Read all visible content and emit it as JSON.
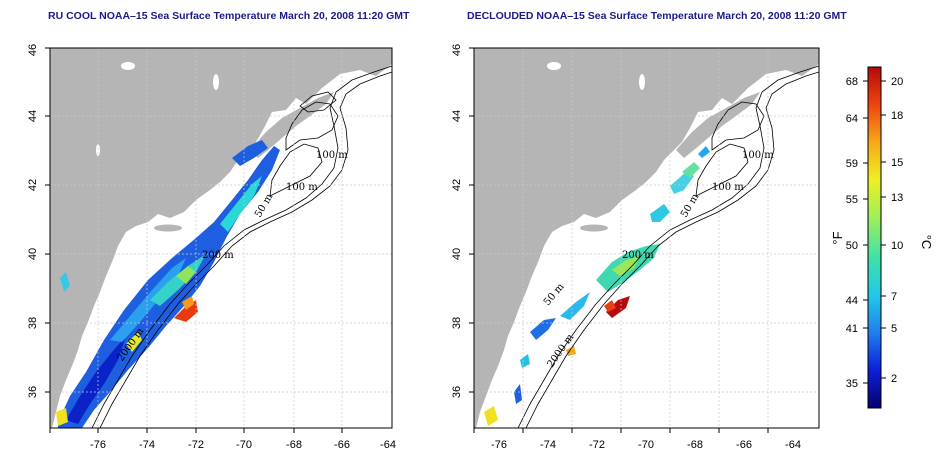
{
  "left_panel": {
    "title": "RU COOL NOAA–15 Sea Surface Temperature March 20, 2008 11:20 GMT",
    "lon_ticks": [
      "-76",
      "-74",
      "-72",
      "-70",
      "-68",
      "-66",
      "-64"
    ],
    "lat_ticks": [
      "36",
      "38",
      "40",
      "42",
      "44",
      "46"
    ],
    "isobath_labels": [
      "100 m",
      "100 m",
      "50 m",
      "200 m",
      "2000 m"
    ]
  },
  "right_panel": {
    "title": "DECLOUDED NOAA–15 Sea Surface Temperature March 20, 2008 11:20 GMT",
    "lon_ticks": [
      "-76",
      "-74",
      "-72",
      "-70",
      "-68",
      "-66",
      "-64"
    ],
    "lat_ticks": [
      "36",
      "38",
      "40",
      "42",
      "44",
      "46"
    ],
    "isobath_labels": [
      "100 m",
      "100 m",
      "50 m",
      "200 m",
      "50 m",
      "2000 m"
    ]
  },
  "colorbar": {
    "fahrenheit_label": "°F",
    "celsius_label": "°C",
    "fahrenheit_ticks": [
      "68",
      "64",
      "59",
      "55",
      "50",
      "44",
      "41",
      "35"
    ],
    "celsius_ticks": [
      "20",
      "18",
      "15",
      "13",
      "10",
      "7",
      "5",
      "2"
    ],
    "colors": [
      "#08006e",
      "#0a1fd8",
      "#1f7ef0",
      "#22c8e8",
      "#3ee2a8",
      "#9ef05a",
      "#eef020",
      "#f8a818",
      "#ee4410",
      "#b40a0a"
    ]
  },
  "colors": {
    "land": "#b5b5b5",
    "frame": "#000000",
    "gridline": "#c8c8c8",
    "title": "#1a1a8c"
  }
}
